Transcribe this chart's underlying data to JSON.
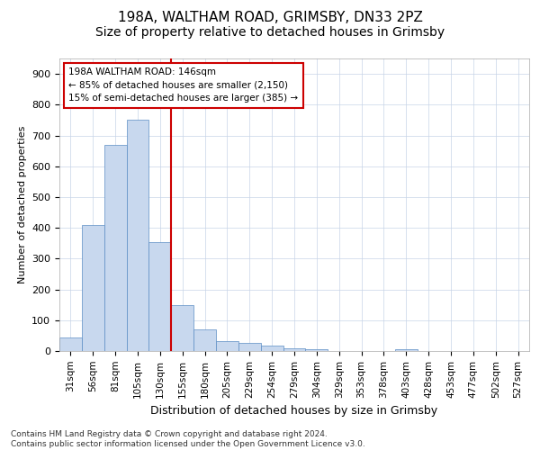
{
  "title1": "198A, WALTHAM ROAD, GRIMSBY, DN33 2PZ",
  "title2": "Size of property relative to detached houses in Grimsby",
  "xlabel": "Distribution of detached houses by size in Grimsby",
  "ylabel": "Number of detached properties",
  "bin_labels": [
    "31sqm",
    "56sqm",
    "81sqm",
    "105sqm",
    "130sqm",
    "155sqm",
    "180sqm",
    "205sqm",
    "229sqm",
    "254sqm",
    "279sqm",
    "304sqm",
    "329sqm",
    "353sqm",
    "378sqm",
    "403sqm",
    "428sqm",
    "453sqm",
    "477sqm",
    "502sqm",
    "527sqm"
  ],
  "bar_heights": [
    45,
    410,
    668,
    750,
    355,
    148,
    70,
    33,
    25,
    17,
    10,
    5,
    0,
    0,
    0,
    5,
    0,
    0,
    0,
    0,
    0
  ],
  "bar_color": "#c8d8ee",
  "bar_edge_color": "#5b8dc4",
  "vline_x": 4.5,
  "vline_color": "#cc0000",
  "annotation_text": "198A WALTHAM ROAD: 146sqm\n← 85% of detached houses are smaller (2,150)\n15% of semi-detached houses are larger (385) →",
  "annotation_box_color": "#ffffff",
  "annotation_box_edge_color": "#cc0000",
  "ylim": [
    0,
    950
  ],
  "yticks": [
    0,
    100,
    200,
    300,
    400,
    500,
    600,
    700,
    800,
    900
  ],
  "footnote": "Contains HM Land Registry data © Crown copyright and database right 2024.\nContains public sector information licensed under the Open Government Licence v3.0.",
  "bg_color": "#ffffff",
  "grid_color": "#c8d4e8",
  "title1_fontsize": 11,
  "title2_fontsize": 10,
  "xlabel_fontsize": 9,
  "ylabel_fontsize": 8,
  "tick_fontsize": 8,
  "xtick_fontsize": 7.5,
  "footnote_fontsize": 6.5
}
